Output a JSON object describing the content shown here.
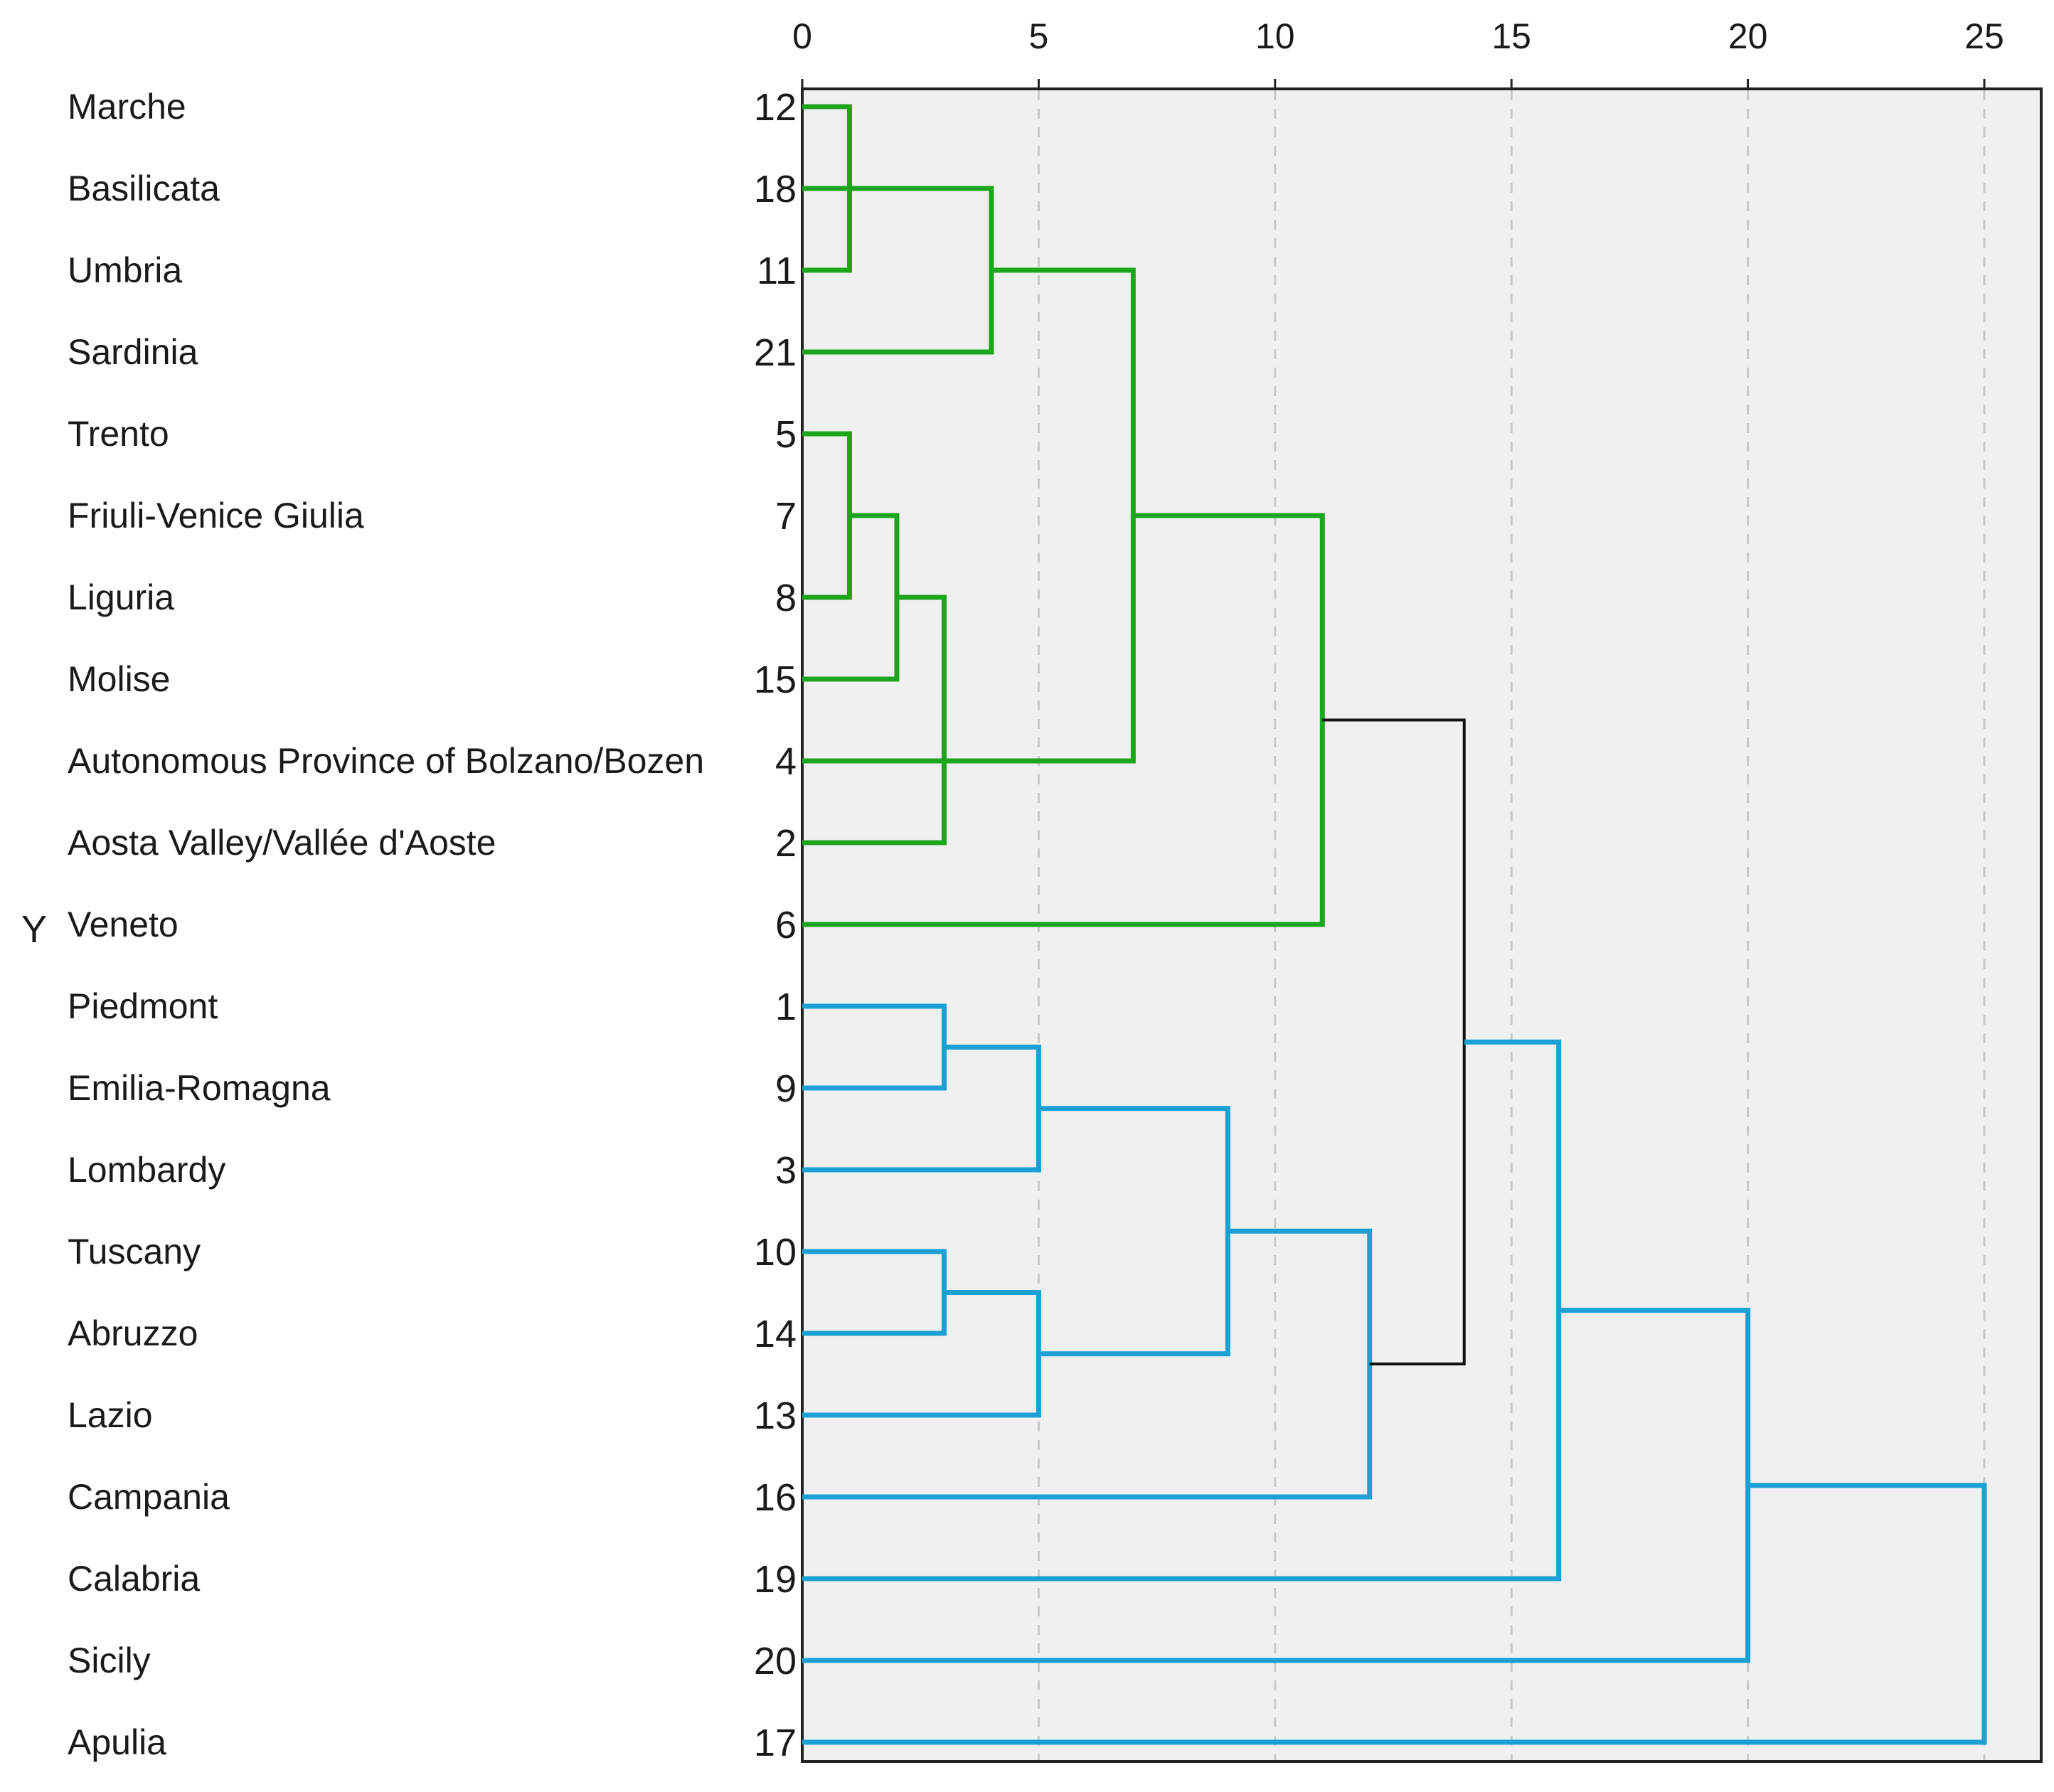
{
  "chart_data": {
    "type": "dendrogram",
    "y_axis_letter": "Y",
    "x_ticks": [
      0,
      5,
      10,
      15,
      20,
      25
    ],
    "xlim": [
      0,
      25
    ],
    "grid": "vertical-dashed",
    "colors": {
      "cluster_a": "#1ea51e",
      "cluster_b": "#1aa0d2",
      "link": "#111111",
      "plot_bg": "#f0f0f0"
    },
    "leaves": [
      {
        "label": "Marche",
        "case": "12"
      },
      {
        "label": "Basilicata",
        "case": "18"
      },
      {
        "label": "Umbria",
        "case": "11"
      },
      {
        "label": "Sardinia",
        "case": "21"
      },
      {
        "label": "Trento",
        "case": "5"
      },
      {
        "label": "Friuli-Venice Giulia",
        "case": "7"
      },
      {
        "label": "Liguria",
        "case": "8"
      },
      {
        "label": "Molise",
        "case": "15"
      },
      {
        "label": "Autonomous Province of Bolzano/Bozen",
        "case": "4"
      },
      {
        "label": "Aosta Valley/Vallée d'Aoste",
        "case": "2"
      },
      {
        "label": "Veneto",
        "case": "6"
      },
      {
        "label": "Piedmont",
        "case": "1"
      },
      {
        "label": "Emilia-Romagna",
        "case": "9"
      },
      {
        "label": "Lombardy",
        "case": "3"
      },
      {
        "label": "Tuscany",
        "case": "10"
      },
      {
        "label": "Abruzzo",
        "case": "14"
      },
      {
        "label": "Lazio",
        "case": "13"
      },
      {
        "label": "Campania",
        "case": "16"
      },
      {
        "label": "Calabria",
        "case": "19"
      },
      {
        "label": "Sicily",
        "case": "20"
      },
      {
        "label": "Apulia",
        "case": "17"
      }
    ],
    "merges": [
      {
        "id": "m1",
        "left": 0,
        "right": 2,
        "height": 1,
        "group": "cluster_a"
      },
      {
        "id": "m2",
        "left": 4,
        "right": 6,
        "height": 1,
        "group": "cluster_a"
      },
      {
        "id": "m3",
        "left": "m2",
        "right": 7,
        "height": 2,
        "group": "cluster_a"
      },
      {
        "id": "m4",
        "left": "m3",
        "right": 9,
        "height": 3,
        "group": "cluster_a"
      },
      {
        "id": "m5",
        "left": 1,
        "right": 3,
        "height": 4,
        "group": "cluster_a"
      },
      {
        "id": "m6",
        "left": "m5",
        "right": 8,
        "height": 7,
        "group": "cluster_a"
      },
      {
        "id": "m7",
        "left": "m6",
        "right": 10,
        "height": 11,
        "group": "cluster_a"
      },
      {
        "id": "m8",
        "left": 11,
        "right": 12,
        "height": 3,
        "group": "cluster_b"
      },
      {
        "id": "m9",
        "left": "m8",
        "right": 13,
        "height": 5,
        "group": "cluster_b"
      },
      {
        "id": "m10",
        "left": 14,
        "right": 15,
        "height": 3,
        "group": "cluster_b"
      },
      {
        "id": "m11",
        "left": "m10",
        "right": 16,
        "height": 5,
        "group": "cluster_b"
      },
      {
        "id": "m12",
        "left": "m9",
        "right": "m11",
        "height": 9,
        "group": "cluster_b"
      },
      {
        "id": "m13",
        "left": "m12",
        "right": 17,
        "height": 12,
        "group": "cluster_b"
      },
      {
        "id": "m14",
        "left": "m7",
        "right": "m13",
        "height": 14,
        "group": "link"
      },
      {
        "id": "m15",
        "left": "m14",
        "right": 18,
        "height": 16,
        "group": "cluster_b"
      },
      {
        "id": "m16",
        "left": "m15",
        "right": 19,
        "height": 20,
        "group": "cluster_b"
      },
      {
        "id": "m17",
        "left": "m16",
        "right": 20,
        "height": 25,
        "group": "cluster_b"
      }
    ]
  }
}
